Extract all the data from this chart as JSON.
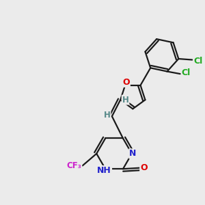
{
  "bg_color": "#ebebeb",
  "bond_color": "#1a1a1a",
  "bond_width": 1.6,
  "dbo": 0.12,
  "atom_colors": {
    "O": "#dd0000",
    "N": "#2222cc",
    "Cl": "#22aa22",
    "F": "#cc22cc",
    "H": "#558888",
    "C": "#1a1a1a"
  },
  "font_size": 9.0
}
